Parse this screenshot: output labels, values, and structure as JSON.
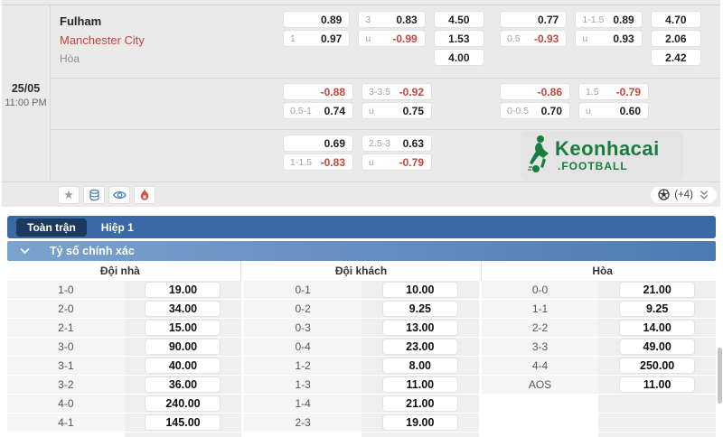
{
  "colors": {
    "accent_blue": "#3a69a5",
    "dark_pill": "#1c3a5e",
    "header_grad_left": "#7ca2ce",
    "header_grad_right": "#4c7bb4",
    "negative_red": "#c8453a",
    "away_red": "#c4463b",
    "logo_green": "#1a7c40",
    "section_gray": "#eaeaea"
  },
  "match": {
    "date": "25/05",
    "time": "11:00 PM",
    "home": "Fulham",
    "away": "Manchester City",
    "draw": "Hòa"
  },
  "odds": {
    "rows": [
      {
        "groups": [
          {
            "pairs": [
              [
                {
                  "l": "",
                  "v": "0.89"
                },
                {
                  "l": "1",
                  "v": "0.97"
                }
              ],
              [
                {
                  "l": "3",
                  "v": "0.83"
                },
                {
                  "l": "u",
                  "v": "-0.99"
                }
              ]
            ],
            "singles": [
              "4.50",
              "1.53",
              "4.00"
            ]
          },
          {
            "pairs": [
              [
                {
                  "l": "",
                  "v": "0.77"
                },
                {
                  "l": "0.5",
                  "v": "-0.93"
                }
              ],
              [
                {
                  "l": "1-1.5",
                  "v": "0.89"
                },
                {
                  "l": "u",
                  "v": "0.93"
                }
              ]
            ],
            "singles": [
              "4.70",
              "2.06",
              "2.42"
            ]
          }
        ]
      },
      {
        "groups": [
          {
            "pairs": [
              [
                {
                  "l": "",
                  "v": "-0.88"
                },
                {
                  "l": "0.5-1",
                  "v": "0.74"
                }
              ],
              [
                {
                  "l": "3-3.5",
                  "v": "-0.92"
                },
                {
                  "l": "u",
                  "v": "0.75"
                }
              ]
            ]
          },
          {
            "pairs": [
              [
                {
                  "l": "",
                  "v": "-0.86"
                },
                {
                  "l": "0-0.5",
                  "v": "0.70"
                }
              ],
              [
                {
                  "l": "1.5",
                  "v": "-0.79"
                },
                {
                  "l": "u",
                  "v": "0.60"
                }
              ]
            ]
          }
        ]
      },
      {
        "groups": [
          {
            "pairs": [
              [
                {
                  "l": "",
                  "v": "0.69"
                },
                {
                  "l": "1-1.5",
                  "v": "-0.83"
                }
              ],
              [
                {
                  "l": "2.5-3",
                  "v": "0.63"
                },
                {
                  "l": "u",
                  "v": "-0.79"
                }
              ]
            ]
          },
          {
            "logo": true
          }
        ]
      }
    ]
  },
  "toolbar": {
    "icons": [
      "star-icon",
      "stack-icon",
      "eye-icon",
      "fire-icon"
    ],
    "more_count": "(+4)"
  },
  "logo": {
    "text": "Keonhacai",
    "sub": ".FOOTBALL"
  },
  "tabs": {
    "full_match": "Toàn trận",
    "first_half": "Hiệp 1"
  },
  "section": {
    "title": "Tỷ số chính xác"
  },
  "score_table": {
    "headers": [
      "Đội nhà",
      "Đội khách",
      "Hòa"
    ],
    "home": [
      {
        "score": "1-0",
        "odds": "19.00"
      },
      {
        "score": "2-0",
        "odds": "34.00"
      },
      {
        "score": "2-1",
        "odds": "15.00"
      },
      {
        "score": "3-0",
        "odds": "90.00"
      },
      {
        "score": "3-1",
        "odds": "40.00"
      },
      {
        "score": "3-2",
        "odds": "36.00"
      },
      {
        "score": "4-0",
        "odds": "240.00"
      },
      {
        "score": "4-1",
        "odds": "145.00"
      }
    ],
    "away": [
      {
        "score": "0-1",
        "odds": "10.00"
      },
      {
        "score": "0-2",
        "odds": "9.25"
      },
      {
        "score": "0-3",
        "odds": "13.00"
      },
      {
        "score": "0-4",
        "odds": "23.00"
      },
      {
        "score": "1-2",
        "odds": "8.00"
      },
      {
        "score": "1-3",
        "odds": "11.00"
      },
      {
        "score": "1-4",
        "odds": "21.00"
      },
      {
        "score": "2-3",
        "odds": "19.00"
      }
    ],
    "draw": [
      {
        "score": "0-0",
        "odds": "21.00"
      },
      {
        "score": "1-1",
        "odds": "9.25"
      },
      {
        "score": "2-2",
        "odds": "14.00"
      },
      {
        "score": "3-3",
        "odds": "49.00"
      },
      {
        "score": "4-4",
        "odds": "250.00"
      },
      {
        "score": "AOS",
        "odds": "11.00"
      }
    ]
  }
}
